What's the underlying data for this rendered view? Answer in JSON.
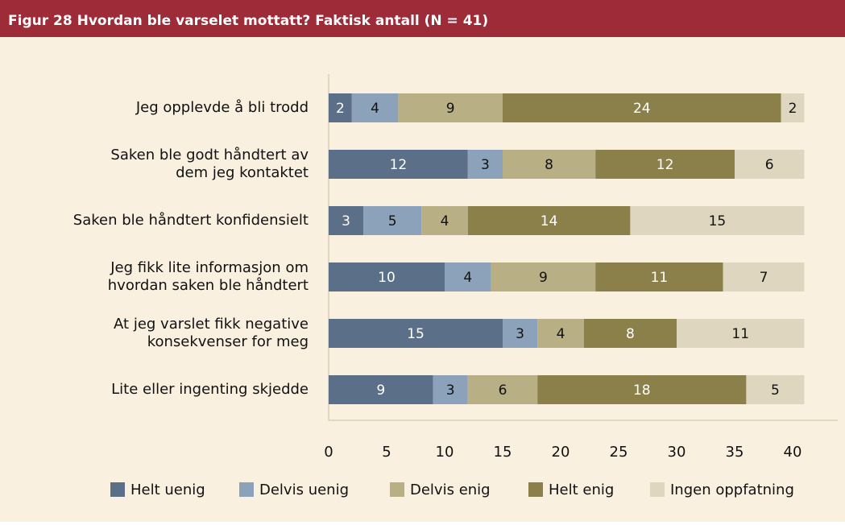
{
  "chart_data": {
    "type": "stacked-barh",
    "title": "Figur 28 Hvordan ble varselet mottatt? Faktisk antall (N = 41)",
    "categories": [
      [
        "Jeg opplevde å bli trodd"
      ],
      [
        "Saken ble godt håndtert av",
        "dem jeg kontaktet"
      ],
      [
        "Saken ble håndtert konfidensielt"
      ],
      [
        "Jeg fikk lite informasjon om",
        "hvordan saken ble håndtert"
      ],
      [
        "At jeg varslet fikk negative",
        "konsekvenser for meg"
      ],
      [
        "Lite eller ingenting skjedde"
      ]
    ],
    "series": [
      {
        "name": "Helt uenig",
        "color": "#5b6f88",
        "values": [
          2,
          12,
          3,
          10,
          15,
          9
        ]
      },
      {
        "name": "Delvis uenig",
        "color": "#8ba2ba",
        "values": [
          4,
          3,
          5,
          4,
          3,
          3
        ]
      },
      {
        "name": "Delvis enig",
        "color": "#b8af84",
        "values": [
          9,
          8,
          4,
          9,
          4,
          6
        ]
      },
      {
        "name": "Helt enig",
        "color": "#8c804a",
        "values": [
          24,
          12,
          14,
          11,
          8,
          18
        ]
      },
      {
        "name": "Ingen oppfatning",
        "color": "#ded6bf",
        "values": [
          2,
          6,
          15,
          7,
          11,
          5
        ]
      }
    ],
    "xlim": [
      0,
      40
    ],
    "xticks": [
      0,
      5,
      10,
      15,
      20,
      25,
      30,
      35,
      40
    ],
    "grid": false
  }
}
